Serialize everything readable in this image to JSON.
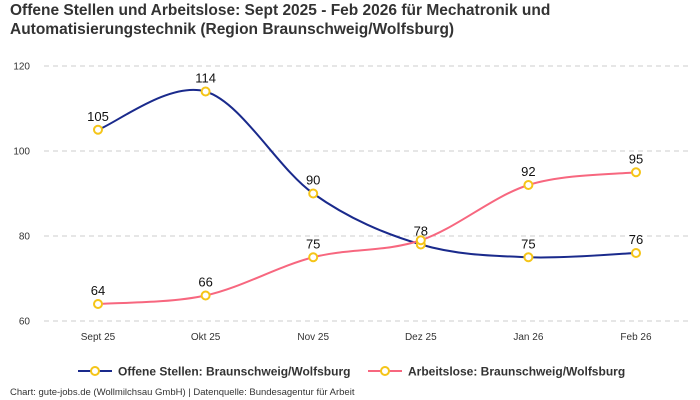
{
  "chart_data": {
    "type": "line",
    "title": "Offene Stellen und Arbeitslose: Sept 2025 - Feb 2026 für Mechatronik und Automatisierungstechnik (Region Braunschweig/Wolfsburg)",
    "categories": [
      "Sept 25",
      "Okt 25",
      "Nov 25",
      "Dez 25",
      "Jan 26",
      "Feb 26"
    ],
    "series": [
      {
        "name": "Offene Stellen: Braunschweig/Wolfsburg",
        "values": [
          105,
          114,
          90,
          78,
          75,
          76
        ],
        "color": "#1a2a8c",
        "labels": [
          "105",
          "114",
          "90",
          "78",
          "75",
          "76"
        ]
      },
      {
        "name": "Arbeitslose: Braunschweig/Wolfsburg",
        "values": [
          64,
          66,
          75,
          79,
          92,
          95
        ],
        "color": "#f7677f",
        "labels": [
          "64",
          "66",
          "75",
          "",
          "92",
          "95"
        ]
      }
    ],
    "marker_color": "#f5c518",
    "ylim": [
      60,
      120
    ],
    "yticks": [
      "60",
      "80",
      "100",
      "120"
    ],
    "grid": true,
    "legend": "bottom",
    "source": "Chart: gute-jobs.de (Wollmilchsau GmbH) | Datenquelle: Bundesagentur für Arbeit"
  }
}
